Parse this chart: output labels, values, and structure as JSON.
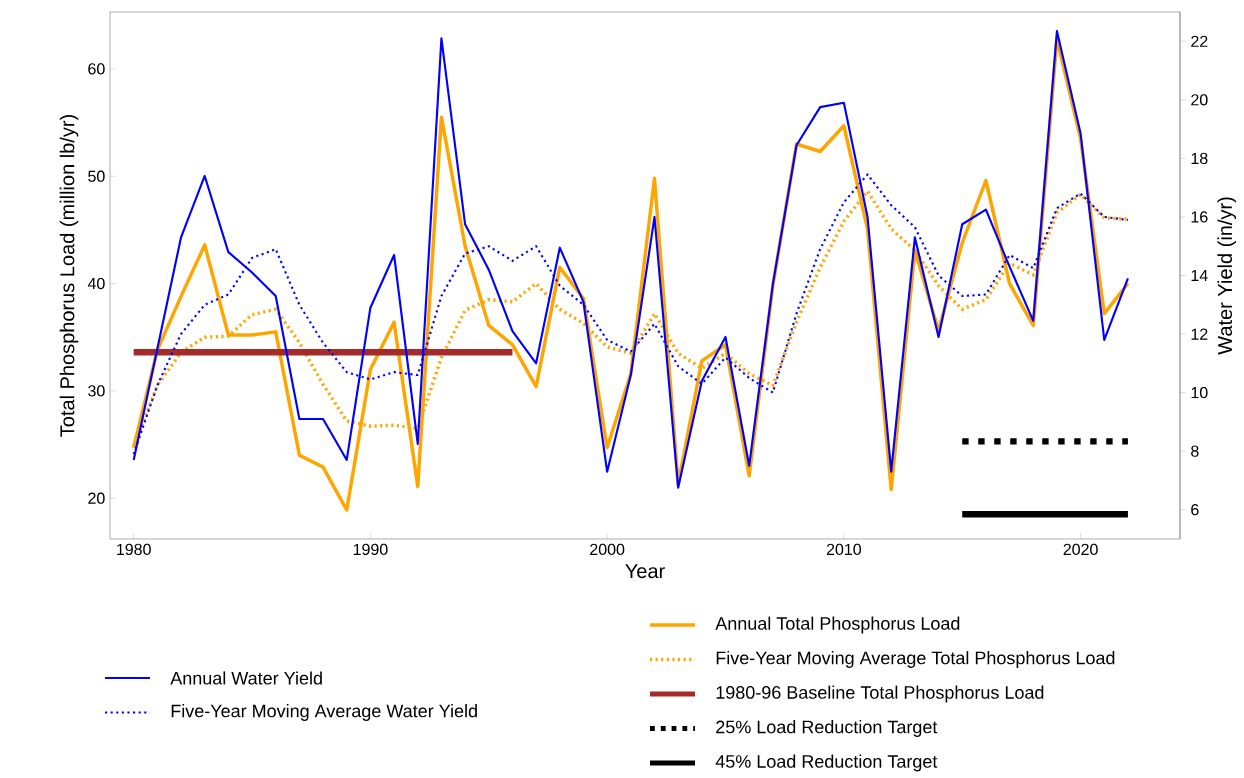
{
  "chart_data": {
    "type": "line",
    "xlabel": "Year",
    "ylabel": "Total Phosphorus Load (million lb/yr)",
    "y2label": "Water Yield (in/yr)",
    "x": [
      1980,
      1981,
      1982,
      1983,
      1984,
      1985,
      1986,
      1987,
      1988,
      1989,
      1990,
      1991,
      1992,
      1993,
      1994,
      1995,
      1996,
      1997,
      1998,
      1999,
      2000,
      2001,
      2002,
      2003,
      2004,
      2005,
      2006,
      2007,
      2008,
      2009,
      2010,
      2011,
      2012,
      2013,
      2014,
      2015,
      2016,
      2017,
      2018,
      2019,
      2020,
      2021,
      2022
    ],
    "xlim": [
      1979,
      2024.2
    ],
    "xticks": [
      1980,
      1990,
      2000,
      2010,
      2020
    ],
    "ylim": [
      16.2,
      65.3
    ],
    "yticks": [
      20,
      30,
      40,
      50,
      60
    ],
    "y2lim": [
      5.0,
      23.0
    ],
    "y2ticks": [
      6,
      8,
      10,
      12,
      14,
      16,
      18,
      20,
      22
    ],
    "legend": "bottom",
    "series": [
      {
        "name": "Annual Total Phosphorus Load",
        "color": "#ffa500",
        "line_style": "solid",
        "values": [
          24.7,
          33.8,
          38.8,
          43.6,
          35.2,
          35.2,
          35.5,
          24.0,
          22.9,
          18.9,
          32.0,
          36.4,
          21.1,
          55.5,
          43.5,
          36.1,
          34.3,
          30.4,
          41.5,
          38.6,
          24.7,
          31.6,
          49.8,
          21.3,
          32.8,
          34.3,
          22.1,
          39.8,
          53.0,
          52.3,
          54.7,
          45.1,
          20.8,
          43.1,
          35.6,
          43.8,
          49.6,
          40.0,
          36.1,
          62.8,
          53.5,
          37.2,
          40.0
        ]
      },
      {
        "name": "Five-Year Moving Average Total Phosphorus Load",
        "color": "#ffa500",
        "line_style": "dotted",
        "values": [
          24.8,
          30.5,
          33.6,
          35.0,
          35.1,
          37.1,
          37.6,
          34.5,
          30.6,
          27.2,
          26.7,
          26.8,
          26.5,
          33.1,
          37.5,
          38.5,
          38.3,
          40.0,
          37.6,
          36.3,
          34.1,
          33.5,
          37.2,
          33.5,
          32.1,
          33.5,
          31.6,
          30.5,
          36.4,
          41.5,
          45.8,
          48.6,
          45.1,
          43.1,
          39.8,
          37.6,
          38.5,
          41.9,
          40.8,
          46.6,
          48.3,
          46.1,
          46.0
        ]
      },
      {
        "name": "1980-96 Baseline Total Phosphorus Load",
        "color": "#a52a2a",
        "line_style": "solid",
        "x": [
          1980,
          1996
        ],
        "values": [
          33.6,
          33.6
        ]
      },
      {
        "name": "25% Load Reduction Target",
        "color": "#000000",
        "line_style": "dotted",
        "x": [
          2015,
          2022
        ],
        "values": [
          25.3,
          25.3
        ]
      },
      {
        "name": "45% Load Reduction Target",
        "color": "#000000",
        "line_style": "solid",
        "x": [
          2015,
          2022
        ],
        "values": [
          18.5,
          18.5
        ]
      },
      {
        "name": "Annual Water Yield",
        "color": "#0000ff",
        "line_style": "solid",
        "axis": "y2",
        "values": [
          7.7,
          11.5,
          15.3,
          17.4,
          14.8,
          14.1,
          13.3,
          9.1,
          9.1,
          7.7,
          12.9,
          14.7,
          8.25,
          22.1,
          15.75,
          14.2,
          12.1,
          11.0,
          14.95,
          13.1,
          7.3,
          10.6,
          16.0,
          6.75,
          10.4,
          11.9,
          7.5,
          13.7,
          18.45,
          19.75,
          19.9,
          16.0,
          7.3,
          15.3,
          11.9,
          15.75,
          16.25,
          14.3,
          12.45,
          22.35,
          18.85,
          11.8,
          13.9
        ]
      },
      {
        "name": "Five-Year Moving Average Water Yield",
        "color": "#0000ff",
        "line_style": "dotted",
        "axis": "y2",
        "values": [
          7.9,
          10.25,
          12.0,
          13.0,
          13.35,
          14.6,
          14.9,
          13.0,
          11.7,
          10.7,
          10.45,
          10.7,
          10.6,
          13.3,
          14.75,
          15.0,
          14.5,
          15.0,
          13.65,
          13.0,
          11.8,
          11.4,
          12.35,
          10.9,
          10.3,
          11.2,
          10.5,
          10.0,
          12.7,
          14.9,
          16.5,
          17.45,
          16.4,
          15.65,
          14.0,
          13.3,
          13.35,
          14.7,
          14.25,
          16.3,
          16.8,
          16.0,
          15.9
        ]
      }
    ]
  }
}
